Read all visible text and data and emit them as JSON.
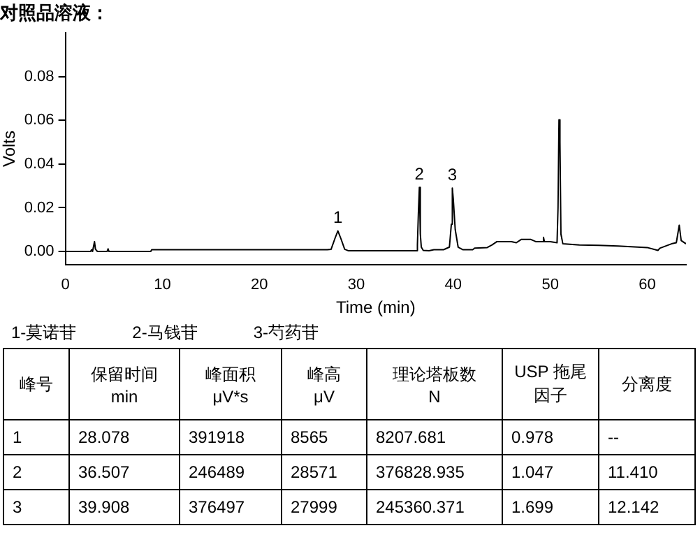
{
  "chart_data": [
    {
      "type": "line",
      "title": "对照品溶液：",
      "xlabel": "Time (min)",
      "ylabel": "Volts",
      "xlim": [
        0,
        64
      ],
      "xticks": [
        0,
        10,
        20,
        30,
        40,
        50,
        60
      ],
      "ylim": [
        -0.006,
        0.1
      ],
      "yticks": [
        {
          "value": 0,
          "label": "0.00"
        },
        {
          "value": 0.02,
          "label": "0.02"
        },
        {
          "value": 0.04,
          "label": "0.04"
        },
        {
          "value": 0.06,
          "label": "0.06"
        },
        {
          "value": 0.08,
          "label": "0.08"
        }
      ],
      "grid": false,
      "legend": false,
      "marker": "none",
      "line_style": "solid",
      "series": [
        {
          "color": "#000000",
          "x": [
            0,
            2.6,
            2.7,
            2.8,
            3.0,
            3.1,
            3.3,
            4.3,
            4.4,
            4.5,
            8.8,
            8.9,
            27.0,
            27.4,
            27.8,
            28.1,
            28.4,
            28.8,
            29.2,
            36.2,
            36.3,
            36.4,
            36.5,
            36.6,
            36.7,
            36.9,
            37.5,
            38.0,
            39.0,
            39.6,
            39.8,
            39.9,
            40.0,
            40.2,
            40.5,
            41,
            42,
            42.2,
            43.5,
            44.0,
            44.5,
            46,
            46.5,
            47,
            48,
            48.5,
            49.2,
            49.3,
            49.4,
            50,
            50.7,
            50.8,
            50.9,
            51.0,
            51.1,
            51.3,
            53,
            55,
            57,
            60,
            61.1,
            61.3,
            62.5,
            63.0,
            63.3,
            63.5,
            64
          ],
          "values": [
            0,
            0,
            0.0008,
            0,
            0.0045,
            0.001,
            0,
            0,
            0.0012,
            0,
            0,
            0.0008,
            0.0008,
            0.001,
            0.006,
            0.0094,
            0.006,
            0.001,
            0.0003,
            0.0003,
            0.003,
            0.0175,
            0.0293,
            0.008,
            0.002,
            0.0005,
            0.0003,
            0.0008,
            0.0008,
            0.002,
            0.0125,
            0.029,
            0.024,
            0.01,
            0.002,
            0.0008,
            0.0008,
            0.0015,
            0.0018,
            0.003,
            0.0045,
            0.0045,
            0.004,
            0.0055,
            0.0055,
            0.0045,
            0.0045,
            0.0065,
            0.0045,
            0.0045,
            0.004,
            0.02,
            0.0603,
            0.05,
            0.008,
            0.0035,
            0.003,
            0.0028,
            0.0025,
            0.0018,
            0.0005,
            0.0015,
            0.0035,
            0.004,
            0.012,
            0.005,
            0.0035
          ]
        }
      ],
      "annotations": [
        {
          "text": "1",
          "x": 28.1,
          "y": 0.0094
        },
        {
          "text": "2",
          "x": 36.5,
          "y": 0.0293
        },
        {
          "text": "3",
          "x": 39.9,
          "y": 0.029
        },
        "1-莫诺苷",
        "2-马钱苷",
        "3-芍药苷"
      ]
    },
    {
      "type": "other",
      "categories": [
        "峰号",
        "保留时间\nmin",
        "峰面积\nμV*s",
        "峰高\nμV",
        "理论塔板数\nN",
        "USP 拖尾因子",
        "分离度"
      ],
      "annotations": [
        "1",
        "28.078",
        "391918",
        "8565",
        "8207.681",
        "0.978",
        "--",
        "2",
        "36.507",
        "246489",
        "28571",
        "376828.935",
        "1.047",
        "11.410",
        "3",
        "39.908",
        "376497",
        "27999",
        "245360.371",
        "1.699",
        "12.142"
      ]
    }
  ]
}
